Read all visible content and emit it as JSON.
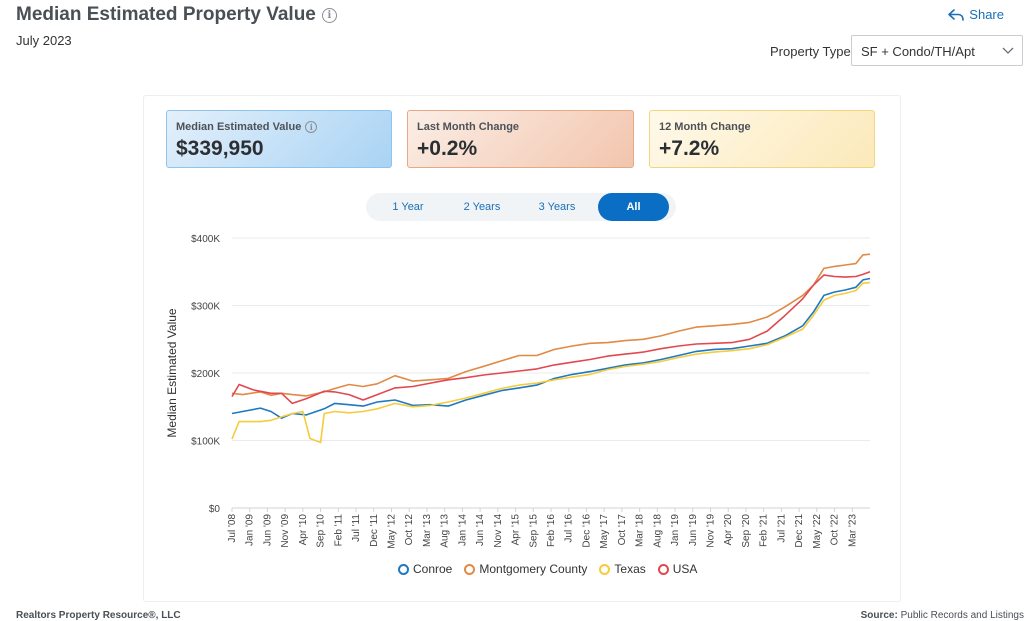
{
  "header": {
    "title": "Median Estimated Property Value",
    "subtitle": "July 2023",
    "share_label": "Share",
    "property_type_label": "Property Type",
    "property_type_value": "SF + Condo/TH/Apt"
  },
  "stats": [
    {
      "label": "Median Estimated Value",
      "value": "$339,950"
    },
    {
      "label": "Last Month Change",
      "value": "+0.2%"
    },
    {
      "label": "12 Month Change",
      "value": "+7.2%"
    }
  ],
  "range_buttons": [
    "1 Year",
    "2 Years",
    "3 Years",
    "All"
  ],
  "footer": {
    "left": "Realtors Property Resource®, LLC",
    "source_label": "Source:",
    "source_value": "Public Records and Listings"
  },
  "chart_data": {
    "type": "line",
    "title": "",
    "xlabel": "",
    "ylabel": "Median Estimated Value",
    "ylim": [
      0,
      400000
    ],
    "yticks": [
      0,
      100000,
      200000,
      300000,
      400000
    ],
    "ytick_labels": [
      "$0",
      "$100K",
      "$200K",
      "$300K",
      "$400K"
    ],
    "x_start": "2008-07",
    "x_end": "2023-07",
    "x_tick_labels": [
      "Jul '08",
      "Jan '09",
      "Jun '09",
      "Nov '09",
      "Apr '10",
      "Sep '10",
      "Feb '11",
      "Jul '11",
      "Dec '11",
      "May '12",
      "Oct '12",
      "Mar '13",
      "Aug '13",
      "Jan '14",
      "Jun '14",
      "Nov '14",
      "Apr '15",
      "Sep '15",
      "Feb '16",
      "Jul '16",
      "Dec '16",
      "May '17",
      "Oct '17",
      "Mar '18",
      "Aug '18",
      "Jan '19",
      "Jun '19",
      "Nov '19",
      "Apr '20",
      "Sep '20",
      "Feb '21",
      "Jul '21",
      "Dec '21",
      "May '22",
      "Oct '22",
      "Mar '23"
    ],
    "grid": true,
    "legend_position": "bottom",
    "series": [
      {
        "name": "Conroe",
        "color": "#1f78c1",
        "points": [
          [
            "2008-07",
            140000
          ],
          [
            "2008-10",
            143000
          ],
          [
            "2009-03",
            148000
          ],
          [
            "2009-06",
            143000
          ],
          [
            "2009-09",
            133000
          ],
          [
            "2009-12",
            140000
          ],
          [
            "2010-04",
            138000
          ],
          [
            "2010-09",
            147000
          ],
          [
            "2010-12",
            155000
          ],
          [
            "2011-04",
            153000
          ],
          [
            "2011-08",
            151000
          ],
          [
            "2011-12",
            157000
          ],
          [
            "2012-05",
            160000
          ],
          [
            "2012-10",
            152000
          ],
          [
            "2013-03",
            153000
          ],
          [
            "2013-08",
            151000
          ],
          [
            "2014-01",
            160000
          ],
          [
            "2014-06",
            167000
          ],
          [
            "2014-11",
            174000
          ],
          [
            "2015-04",
            178000
          ],
          [
            "2015-09",
            182000
          ],
          [
            "2016-02",
            192000
          ],
          [
            "2016-07",
            198000
          ],
          [
            "2016-12",
            202000
          ],
          [
            "2017-05",
            207000
          ],
          [
            "2017-10",
            212000
          ],
          [
            "2018-03",
            215000
          ],
          [
            "2018-08",
            220000
          ],
          [
            "2019-01",
            226000
          ],
          [
            "2019-06",
            232000
          ],
          [
            "2019-11",
            235000
          ],
          [
            "2020-04",
            236000
          ],
          [
            "2020-09",
            240000
          ],
          [
            "2021-02",
            244000
          ],
          [
            "2021-07",
            255000
          ],
          [
            "2021-12",
            270000
          ],
          [
            "2022-03",
            290000
          ],
          [
            "2022-06",
            315000
          ],
          [
            "2022-09",
            320000
          ],
          [
            "2022-12",
            323000
          ],
          [
            "2023-03",
            327000
          ],
          [
            "2023-05",
            338000
          ],
          [
            "2023-07",
            339950
          ]
        ]
      },
      {
        "name": "Montgomery County",
        "color": "#e08a45",
        "points": [
          [
            "2008-07",
            170000
          ],
          [
            "2008-10",
            168000
          ],
          [
            "2009-03",
            172000
          ],
          [
            "2009-06",
            167000
          ],
          [
            "2009-09",
            170000
          ],
          [
            "2009-12",
            168000
          ],
          [
            "2010-04",
            166000
          ],
          [
            "2010-09",
            172000
          ],
          [
            "2010-12",
            177000
          ],
          [
            "2011-04",
            183000
          ],
          [
            "2011-08",
            180000
          ],
          [
            "2011-12",
            184000
          ],
          [
            "2012-05",
            196000
          ],
          [
            "2012-10",
            188000
          ],
          [
            "2013-03",
            190000
          ],
          [
            "2013-08",
            192000
          ],
          [
            "2014-01",
            202000
          ],
          [
            "2014-06",
            210000
          ],
          [
            "2014-11",
            218000
          ],
          [
            "2015-04",
            226000
          ],
          [
            "2015-09",
            226000
          ],
          [
            "2016-02",
            235000
          ],
          [
            "2016-07",
            240000
          ],
          [
            "2016-12",
            244000
          ],
          [
            "2017-05",
            245000
          ],
          [
            "2017-10",
            248000
          ],
          [
            "2018-03",
            250000
          ],
          [
            "2018-08",
            255000
          ],
          [
            "2019-01",
            262000
          ],
          [
            "2019-06",
            268000
          ],
          [
            "2019-11",
            270000
          ],
          [
            "2020-04",
            272000
          ],
          [
            "2020-09",
            275000
          ],
          [
            "2021-02",
            283000
          ],
          [
            "2021-07",
            298000
          ],
          [
            "2021-12",
            315000
          ],
          [
            "2022-03",
            330000
          ],
          [
            "2022-06",
            355000
          ],
          [
            "2022-09",
            358000
          ],
          [
            "2022-12",
            360000
          ],
          [
            "2023-03",
            362000
          ],
          [
            "2023-05",
            375000
          ],
          [
            "2023-07",
            376000
          ]
        ]
      },
      {
        "name": "Texas",
        "color": "#f5cc3d",
        "points": [
          [
            "2008-07",
            102000
          ],
          [
            "2008-09",
            128000
          ],
          [
            "2009-03",
            128000
          ],
          [
            "2009-06",
            130000
          ],
          [
            "2009-09",
            135000
          ],
          [
            "2009-12",
            140000
          ],
          [
            "2010-03",
            143000
          ],
          [
            "2010-05",
            103000
          ],
          [
            "2010-08",
            97000
          ],
          [
            "2010-09",
            140000
          ],
          [
            "2010-12",
            143000
          ],
          [
            "2011-04",
            141000
          ],
          [
            "2011-08",
            143000
          ],
          [
            "2011-12",
            147000
          ],
          [
            "2012-05",
            155000
          ],
          [
            "2012-10",
            150000
          ],
          [
            "2013-03",
            152000
          ],
          [
            "2013-08",
            157000
          ],
          [
            "2014-01",
            163000
          ],
          [
            "2014-06",
            170000
          ],
          [
            "2014-11",
            177000
          ],
          [
            "2015-04",
            182000
          ],
          [
            "2015-09",
            185000
          ],
          [
            "2016-02",
            190000
          ],
          [
            "2016-07",
            194000
          ],
          [
            "2016-12",
            198000
          ],
          [
            "2017-05",
            205000
          ],
          [
            "2017-10",
            210000
          ],
          [
            "2018-03",
            213000
          ],
          [
            "2018-08",
            217000
          ],
          [
            "2019-01",
            223000
          ],
          [
            "2019-06",
            228000
          ],
          [
            "2019-11",
            231000
          ],
          [
            "2020-04",
            233000
          ],
          [
            "2020-09",
            236000
          ],
          [
            "2021-02",
            242000
          ],
          [
            "2021-07",
            253000
          ],
          [
            "2021-12",
            265000
          ],
          [
            "2022-03",
            285000
          ],
          [
            "2022-06",
            308000
          ],
          [
            "2022-09",
            315000
          ],
          [
            "2022-12",
            318000
          ],
          [
            "2023-03",
            322000
          ],
          [
            "2023-05",
            333000
          ],
          [
            "2023-07",
            334000
          ]
        ]
      },
      {
        "name": "USA",
        "color": "#e2484f",
        "points": [
          [
            "2008-07",
            165000
          ],
          [
            "2008-09",
            183000
          ],
          [
            "2009-01",
            175000
          ],
          [
            "2009-06",
            170000
          ],
          [
            "2009-09",
            170000
          ],
          [
            "2009-12",
            155000
          ],
          [
            "2010-04",
            162000
          ],
          [
            "2010-09",
            173000
          ],
          [
            "2010-12",
            172000
          ],
          [
            "2011-04",
            168000
          ],
          [
            "2011-08",
            160000
          ],
          [
            "2011-12",
            168000
          ],
          [
            "2012-05",
            178000
          ],
          [
            "2012-10",
            180000
          ],
          [
            "2013-03",
            185000
          ],
          [
            "2013-08",
            190000
          ],
          [
            "2014-01",
            193000
          ],
          [
            "2014-06",
            197000
          ],
          [
            "2014-11",
            200000
          ],
          [
            "2015-04",
            203000
          ],
          [
            "2015-09",
            206000
          ],
          [
            "2016-02",
            212000
          ],
          [
            "2016-07",
            216000
          ],
          [
            "2016-12",
            220000
          ],
          [
            "2017-05",
            225000
          ],
          [
            "2017-10",
            228000
          ],
          [
            "2018-03",
            231000
          ],
          [
            "2018-08",
            236000
          ],
          [
            "2019-01",
            240000
          ],
          [
            "2019-06",
            243000
          ],
          [
            "2019-11",
            244000
          ],
          [
            "2020-04",
            245000
          ],
          [
            "2020-09",
            250000
          ],
          [
            "2021-02",
            262000
          ],
          [
            "2021-07",
            285000
          ],
          [
            "2021-12",
            310000
          ],
          [
            "2022-03",
            330000
          ],
          [
            "2022-06",
            345000
          ],
          [
            "2022-09",
            343000
          ],
          [
            "2022-12",
            342000
          ],
          [
            "2023-03",
            343000
          ],
          [
            "2023-05",
            346000
          ],
          [
            "2023-07",
            350000
          ]
        ]
      }
    ]
  }
}
